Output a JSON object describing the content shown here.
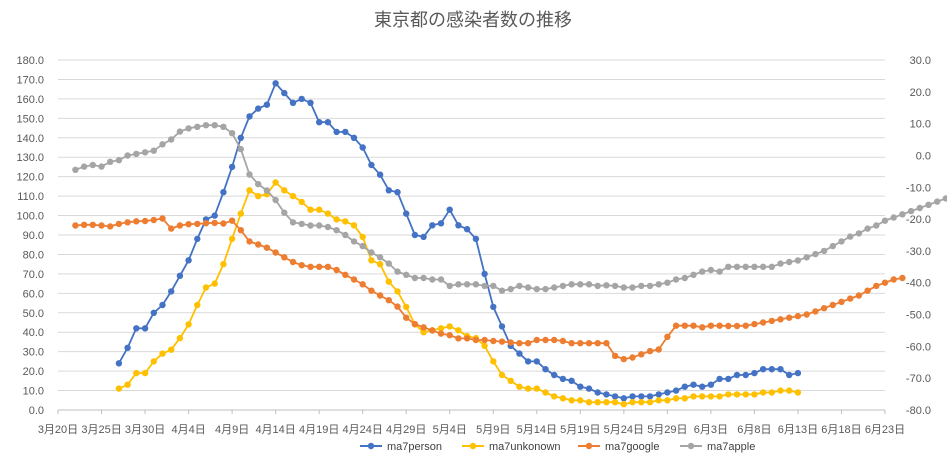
{
  "chart_data": {
    "type": "line",
    "title": "東京都の感染者数の推移",
    "xlabel": "",
    "ylabel": "",
    "x_tick_labels": [
      "3月20日",
      "3月25日",
      "3月30日",
      "4月4日",
      "4月9日",
      "4月14日",
      "4月19日",
      "4月24日",
      "4月29日",
      "5月4日",
      "5月9日",
      "5月14日",
      "5月19日",
      "5月24日",
      "5月29日",
      "6月3日",
      "6月8日",
      "6月13日",
      "6月18日",
      "6月23日"
    ],
    "xlim_day_index": [
      0,
      95
    ],
    "ylim_left": [
      0,
      180
    ],
    "ytick_step_left": 10,
    "ylim_right": [
      -80,
      30
    ],
    "ytick_step_right": 10,
    "y_tick_labels_left": [
      "0.0",
      "10.0",
      "20.0",
      "30.0",
      "40.0",
      "50.0",
      "60.0",
      "70.0",
      "80.0",
      "90.0",
      "100.0",
      "110.0",
      "120.0",
      "130.0",
      "140.0",
      "150.0",
      "160.0",
      "170.0",
      "180.0"
    ],
    "y_tick_labels_right": [
      "-80.0",
      "-70.0",
      "-60.0",
      "-50.0",
      "-40.0",
      "-30.0",
      "-20.0",
      "-10.0",
      "0.0",
      "10.0",
      "20.0",
      "30.0"
    ],
    "legend_position": "bottom",
    "series": [
      {
        "name": "ma7person",
        "axis": "left",
        "color": "#4472C4",
        "start_day": 7,
        "values": [
          24,
          32,
          42,
          42,
          50,
          54,
          61,
          69,
          77,
          88,
          98,
          100,
          112,
          125,
          140,
          151,
          155,
          157,
          168,
          163,
          158,
          160,
          158,
          148,
          148,
          143,
          143,
          140,
          135,
          126,
          121,
          113,
          112,
          101,
          90,
          89,
          95,
          96,
          103,
          95,
          93,
          88,
          70,
          53,
          43,
          33,
          29,
          25,
          25,
          21,
          18,
          16,
          15,
          12,
          11,
          9,
          8,
          7,
          6,
          7,
          7,
          7,
          8,
          9,
          10,
          12,
          13,
          12,
          13,
          16,
          16,
          18,
          18,
          19,
          21,
          21,
          21,
          18,
          19
        ]
      },
      {
        "name": "ma7unkonown",
        "axis": "left",
        "color": "#FFC000",
        "start_day": 7,
        "values": [
          11,
          13,
          19,
          19,
          25,
          29,
          31,
          37,
          44,
          54,
          63,
          65,
          75,
          88,
          101,
          113,
          110,
          111,
          117,
          113,
          110,
          107,
          103,
          103,
          101,
          98,
          97,
          95,
          89,
          77,
          75,
          66,
          61,
          53,
          44,
          40,
          41,
          42,
          43,
          41,
          38,
          37,
          33,
          25,
          18,
          15,
          12,
          11,
          11,
          9,
          7,
          6,
          5,
          5,
          4,
          4,
          4,
          4,
          3,
          4,
          4,
          4,
          5,
          5,
          6,
          6,
          7,
          7,
          7,
          7,
          8,
          8,
          8,
          8,
          9,
          9,
          10,
          10,
          9
        ]
      },
      {
        "name": "ma7google",
        "axis": "right",
        "color": "#ED7D31",
        "start_day": 2,
        "values": [
          -22,
          -21.8,
          -21.8,
          -22,
          -22.3,
          -21.5,
          -21,
          -20.7,
          -20.6,
          -20.3,
          -19.8,
          -23,
          -22,
          -21.6,
          -21.5,
          -21.3,
          -21.2,
          -21.4,
          -20.5,
          -23.5,
          -27,
          -28,
          -29,
          -30.5,
          -32,
          -33.5,
          -34.5,
          -35,
          -35,
          -35,
          -36,
          -37.5,
          -39,
          -40.5,
          -42.5,
          -44,
          -45.5,
          -47.5,
          -51,
          -53,
          -54,
          -55,
          -56,
          -56.5,
          -57.5,
          -57.5,
          -58,
          -58,
          -58.3,
          -58.5,
          -58.8,
          -59,
          -59,
          -58,
          -58,
          -58,
          -58.3,
          -59,
          -59,
          -59,
          -59,
          -59,
          -63,
          -64,
          -63.5,
          -62.5,
          -61.5,
          -61,
          -57,
          -53.5,
          -53.5,
          -53.5,
          -54,
          -53.5,
          -53.5,
          -53.6,
          -53.6,
          -53.5,
          -53,
          -52.5,
          -52,
          -51.5,
          -51,
          -50.5,
          -50,
          -49,
          -48,
          -47,
          -46,
          -45,
          -44,
          -42.5,
          -41,
          -40,
          -39,
          -38.5
        ]
      },
      {
        "name": "ma7apple",
        "axis": "right",
        "color": "#A5A5A5",
        "start_day": 2,
        "values": [
          -4.5,
          -3.5,
          -3,
          -3.5,
          -2,
          -1.5,
          0,
          0.5,
          1,
          1.5,
          3.5,
          5,
          7.5,
          8.5,
          9,
          9.5,
          9.5,
          9,
          7,
          2,
          -6,
          -9,
          -11,
          -14,
          -18,
          -21,
          -21.5,
          -22,
          -22,
          -22.5,
          -23.5,
          -25,
          -27,
          -28.5,
          -30.5,
          -32,
          -34,
          -36.5,
          -37.5,
          -38.5,
          -38.5,
          -39,
          -39,
          -41,
          -40.5,
          -40.5,
          -40.5,
          -41,
          -41,
          -42.5,
          -42,
          -41,
          -41.5,
          -42,
          -42,
          -41.5,
          -41,
          -40.5,
          -40.5,
          -40.5,
          -41,
          -40.8,
          -41,
          -41.5,
          -41.5,
          -41,
          -41,
          -40.5,
          -40,
          -39,
          -38.5,
          -37.5,
          -36.5,
          -36,
          -36.5,
          -35,
          -35,
          -35,
          -35,
          -35,
          -35,
          -34,
          -33.5,
          -33,
          -32,
          -31,
          -30,
          -28.5,
          -27,
          -25.5,
          -24.5,
          -23,
          -22,
          -20.5,
          -19.5,
          -18.5,
          -17.5,
          -16.5,
          -15.5,
          -14.5,
          -13.5,
          -12.5,
          -11.5,
          -10.5
        ]
      }
    ]
  }
}
